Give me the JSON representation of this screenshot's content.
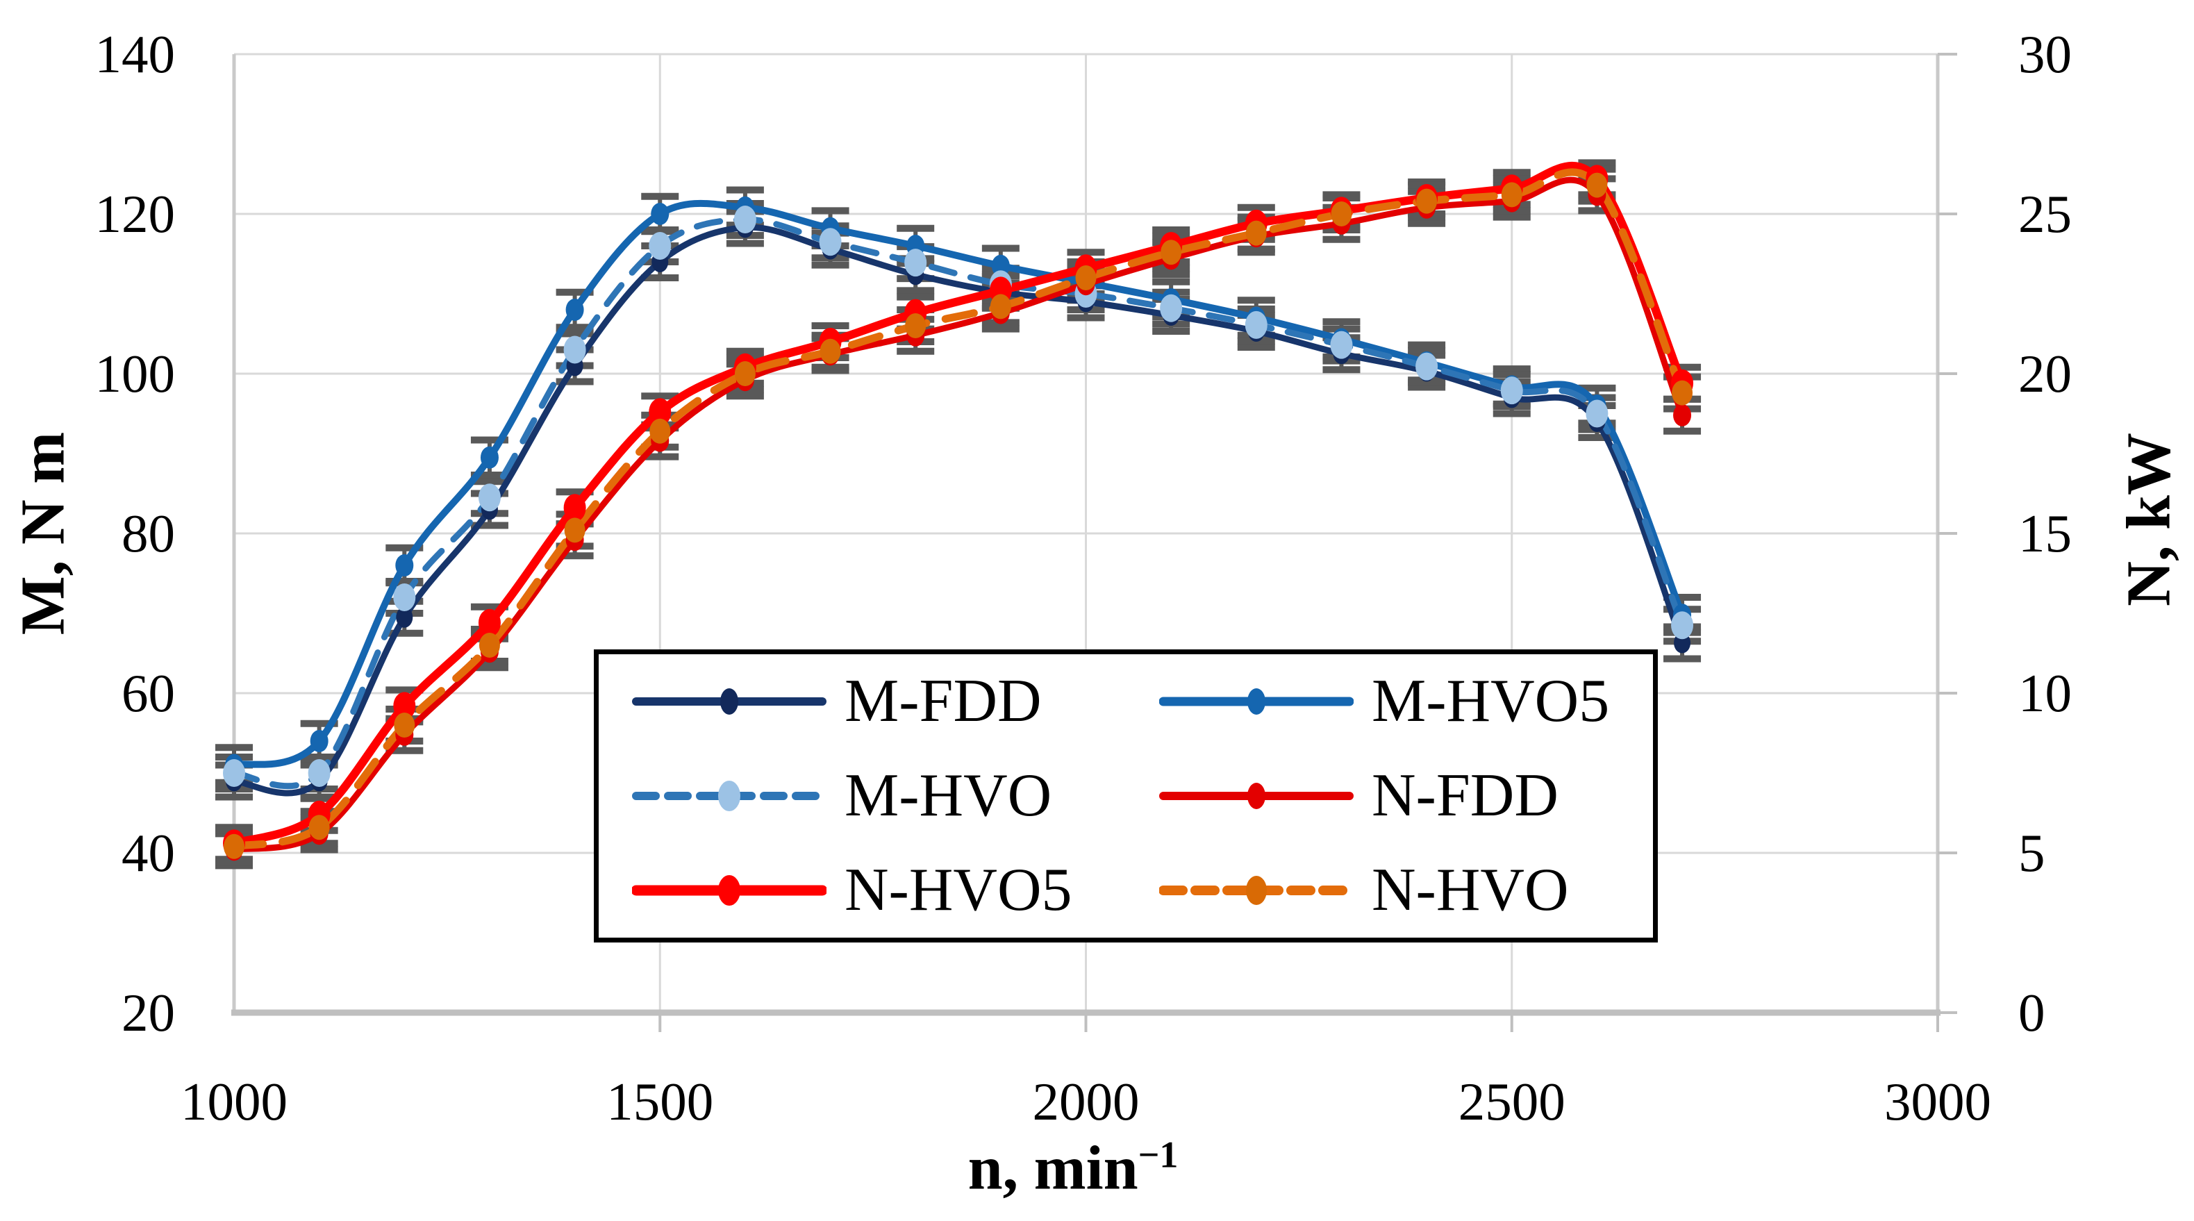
{
  "chart_data": {
    "type": "line",
    "title": "",
    "xlabel": {
      "base": "n, min",
      "sup": "−1"
    },
    "ylabel_left": "M, N m",
    "ylabel_right": "N, kW",
    "x_axis": {
      "min": 1000,
      "max": 3000,
      "tick_labels": [
        1000,
        1500,
        2000,
        2500,
        3000
      ]
    },
    "y_left_axis": {
      "min": 20,
      "max": 140,
      "tick_labels": [
        20,
        40,
        60,
        80,
        100,
        120,
        140
      ]
    },
    "y_right_axis": {
      "min": 0,
      "max": 30,
      "tick_labels": [
        0,
        5,
        10,
        15,
        20,
        25,
        30
      ]
    },
    "grid": true,
    "legend_position": "inside-bottom-center",
    "x": [
      1000,
      1100,
      1200,
      1300,
      1400,
      1500,
      1600,
      1700,
      1800,
      1900,
      2000,
      2100,
      2200,
      2300,
      2400,
      2500,
      2600,
      2700
    ],
    "series": [
      {
        "key": "M-FDD",
        "label": "M-FDD",
        "axis": "M",
        "color": "#17356B",
        "marker_color": "#12295B",
        "dashed": false,
        "dash": "",
        "line_width": 9,
        "marker_rx": 12,
        "err": 2.0,
        "values": [
          49,
          49,
          69.5,
          83,
          101,
          114,
          118.3,
          115.6,
          112.4,
          110.2,
          109.0,
          107.3,
          105.3,
          102.5,
          100.3,
          97,
          94,
          66.3
        ]
      },
      {
        "key": "M-HVO5",
        "label": "M-HVO5",
        "axis": "M",
        "color": "#1566B0",
        "marker_color": "#1566B0",
        "dashed": false,
        "dash": "",
        "line_width": 10,
        "marker_rx": 13,
        "err": 2.2,
        "values": [
          51,
          54,
          76,
          89.5,
          108,
          120,
          120.8,
          118.2,
          116.0,
          113.5,
          111.4,
          109.3,
          107.0,
          104.3,
          101.4,
          98.4,
          96,
          69.8
        ]
      },
      {
        "key": "M-HVO",
        "label": "M-HVO",
        "axis": "M",
        "color": "#2E75B6",
        "marker_color": "#9CC2E5",
        "dashed": true,
        "dash": "34 24",
        "line_width": 9,
        "marker_rx": 16,
        "err": 2.0,
        "values": [
          50,
          50,
          72,
          84.5,
          103,
          116,
          119.3,
          116.5,
          113.9,
          111.2,
          110.0,
          108.2,
          106.1,
          103.6,
          100.9,
          97.9,
          95,
          68.5
        ]
      },
      {
        "key": "N-FDD",
        "label": "N-FDD",
        "axis": "N",
        "color": "#E30000",
        "marker_color": "#E30000",
        "dashed": false,
        "dash": "",
        "line_width": 9,
        "marker_rx": 13,
        "err": 0.5,
        "values": [
          5.1,
          5.6,
          8.7,
          11.3,
          14.8,
          17.9,
          19.8,
          20.6,
          21.2,
          21.9,
          22.8,
          23.6,
          24.3,
          24.7,
          25.2,
          25.4,
          25.6,
          18.7
        ]
      },
      {
        "key": "N-HVO5",
        "label": "N-HVO5",
        "axis": "N",
        "color": "#FF0000",
        "marker_color": "#FF0000",
        "dashed": false,
        "dash": "",
        "line_width": 12,
        "marker_rx": 16,
        "err": 0.5,
        "values": [
          5.3,
          6.2,
          9.6,
          12.2,
          15.8,
          18.8,
          20.2,
          21.0,
          21.9,
          22.6,
          23.3,
          24.0,
          24.7,
          25.1,
          25.5,
          25.8,
          26.1,
          19.7
        ]
      },
      {
        "key": "N-HVO",
        "label": "N-HVO",
        "axis": "N",
        "color": "#E36C0A",
        "marker_color": "#D96A05",
        "dashed": true,
        "dash": "42 28",
        "line_width": 11,
        "marker_rx": 15,
        "err": 0.5,
        "values": [
          5.2,
          5.8,
          9.0,
          11.5,
          15.1,
          18.2,
          20.0,
          20.7,
          21.5,
          22.1,
          23.0,
          23.8,
          24.4,
          25.0,
          25.4,
          25.6,
          25.9,
          19.4
        ]
      }
    ],
    "draw_order": [
      "M-HVO5",
      "M-FDD",
      "M-HVO",
      "N-FDD",
      "N-HVO5",
      "N-HVO"
    ],
    "colors": {
      "grid": "#D9D9D9",
      "axis_line": "#BFBFBF",
      "side_axis_line": "#C9C9C9",
      "error_bar": "#595959",
      "text": "#000000"
    }
  }
}
